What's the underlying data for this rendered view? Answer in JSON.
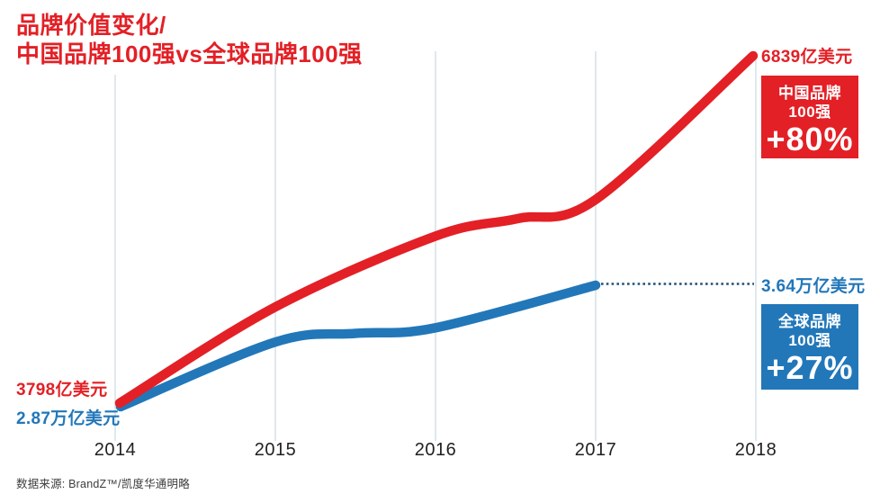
{
  "title": {
    "line1": "品牌价值变化/",
    "line2": "中国品牌100强vs全球品牌100强"
  },
  "annotations": {
    "china_start_value": "3798亿美元",
    "global_start_value": "2.87万亿美元",
    "china_end_value": "6839亿美元",
    "global_end_value": "3.64万亿美元"
  },
  "badges": {
    "china": {
      "name_line1": "中国品牌",
      "name_line2": "100强",
      "change": "+80%",
      "bg": "#e32026"
    },
    "global": {
      "name_line1": "全球品牌",
      "name_line2": "100强",
      "change": "+27%",
      "bg": "#2277b9"
    }
  },
  "axis": {
    "years": [
      "2014",
      "2015",
      "2016",
      "2017",
      "2018"
    ]
  },
  "source": "数据来源: BrandZ™/凯度华通明略",
  "colors": {
    "china_red": "#e32026",
    "global_blue": "#2277b9",
    "dotted_extension_blue": "#1f4e79",
    "gridline": "#ccdbe4",
    "axis_text": "#242021",
    "source_text": "#3c3c3c"
  },
  "chart_data": {
    "type": "line",
    "title": "品牌价值变化/ 中国品牌100强vs全球品牌100强",
    "x": [
      2014,
      2015,
      2016,
      2017,
      2018
    ],
    "series": [
      {
        "name": "中国品牌100强",
        "color": "#e32026",
        "unit": "亿美元",
        "values": [
          3798,
          4640,
          5260,
          5580,
          6839
        ],
        "value_labels_shown": {
          "2014": "3798亿美元",
          "2018": "6839亿美元"
        },
        "total_change": "+80%"
      },
      {
        "name": "全球品牌100强",
        "color": "#2277b9",
        "unit": "万亿美元",
        "values": [
          2.87,
          3.28,
          3.37,
          3.64,
          null
        ],
        "value_labels_shown": {
          "2014": "2.87万亿美元",
          "2017": "3.64万亿美元"
        },
        "total_change": "+27%"
      }
    ],
    "grid": "vertical-only",
    "legend_position": "right-badges",
    "xlim": [
      2014,
      2018
    ]
  }
}
